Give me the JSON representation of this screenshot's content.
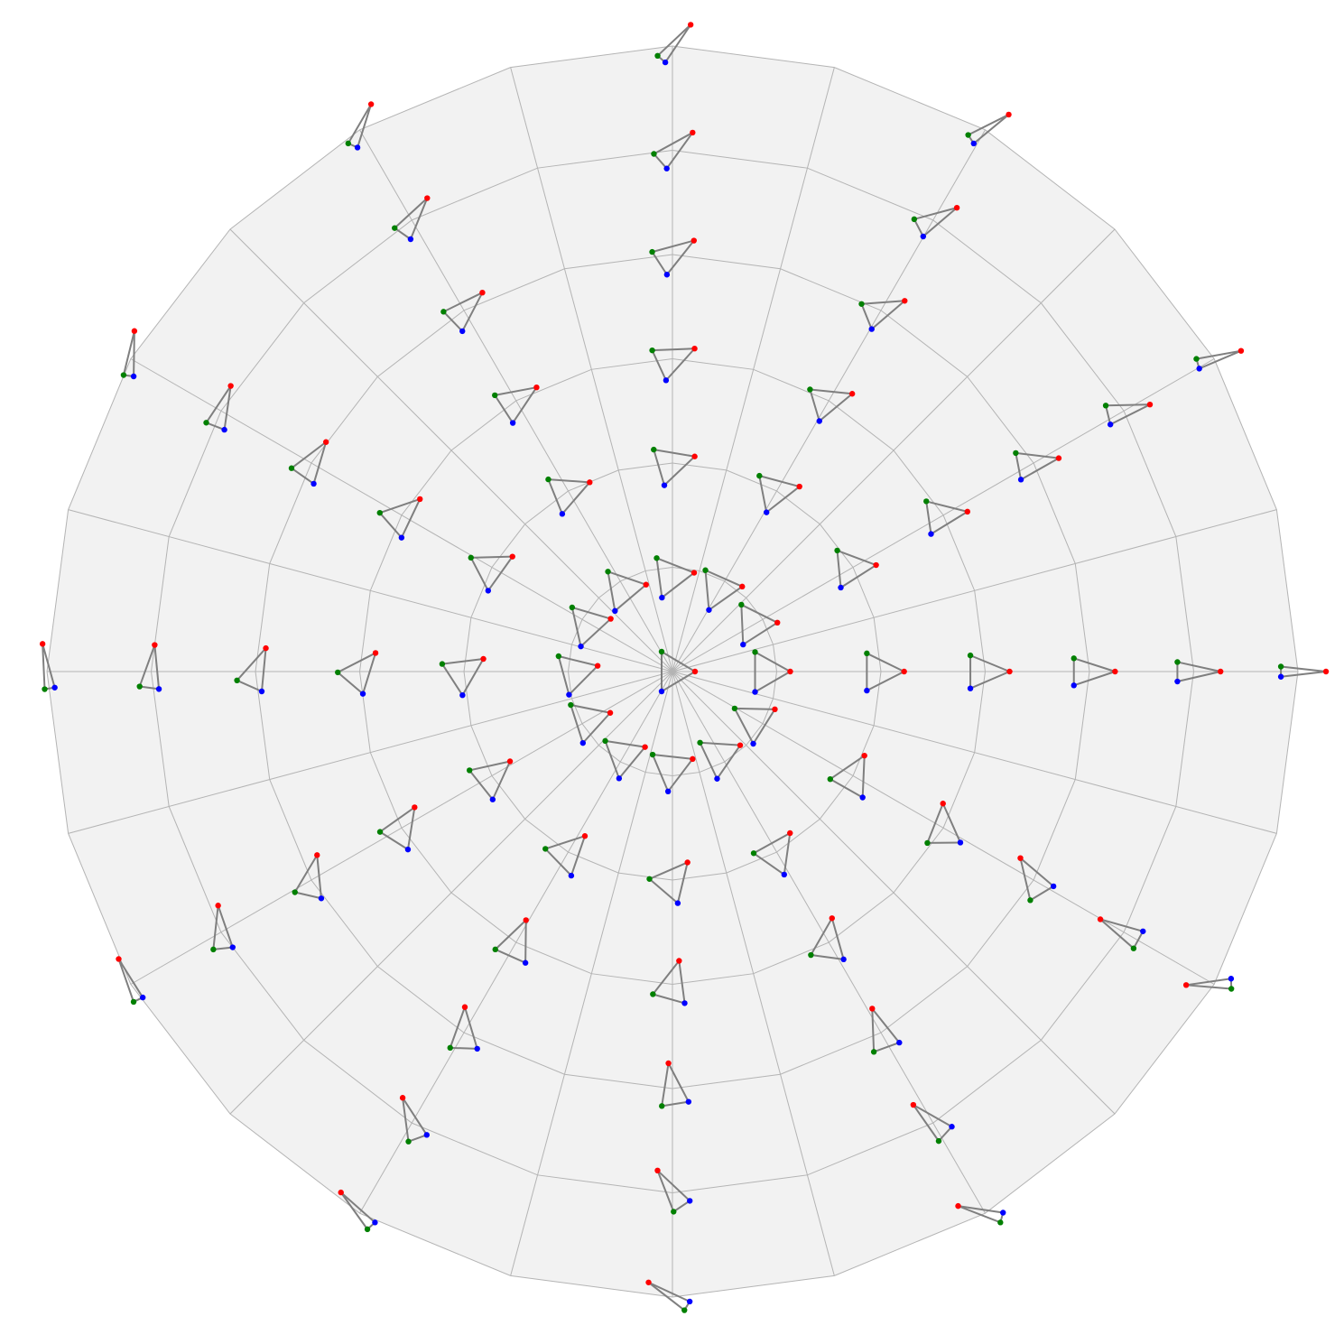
{
  "diagram": {
    "type": "polar-glyph-grid",
    "rings": 6,
    "sectors": 24,
    "grid_colors": {
      "fill": "#f2f2f2",
      "lines": "#b4b4b4"
    },
    "glyph_colors": {
      "edge": "#7f7f7f",
      "a": "#ff0000",
      "b": "#008000",
      "c": "#0000ff"
    }
  }
}
